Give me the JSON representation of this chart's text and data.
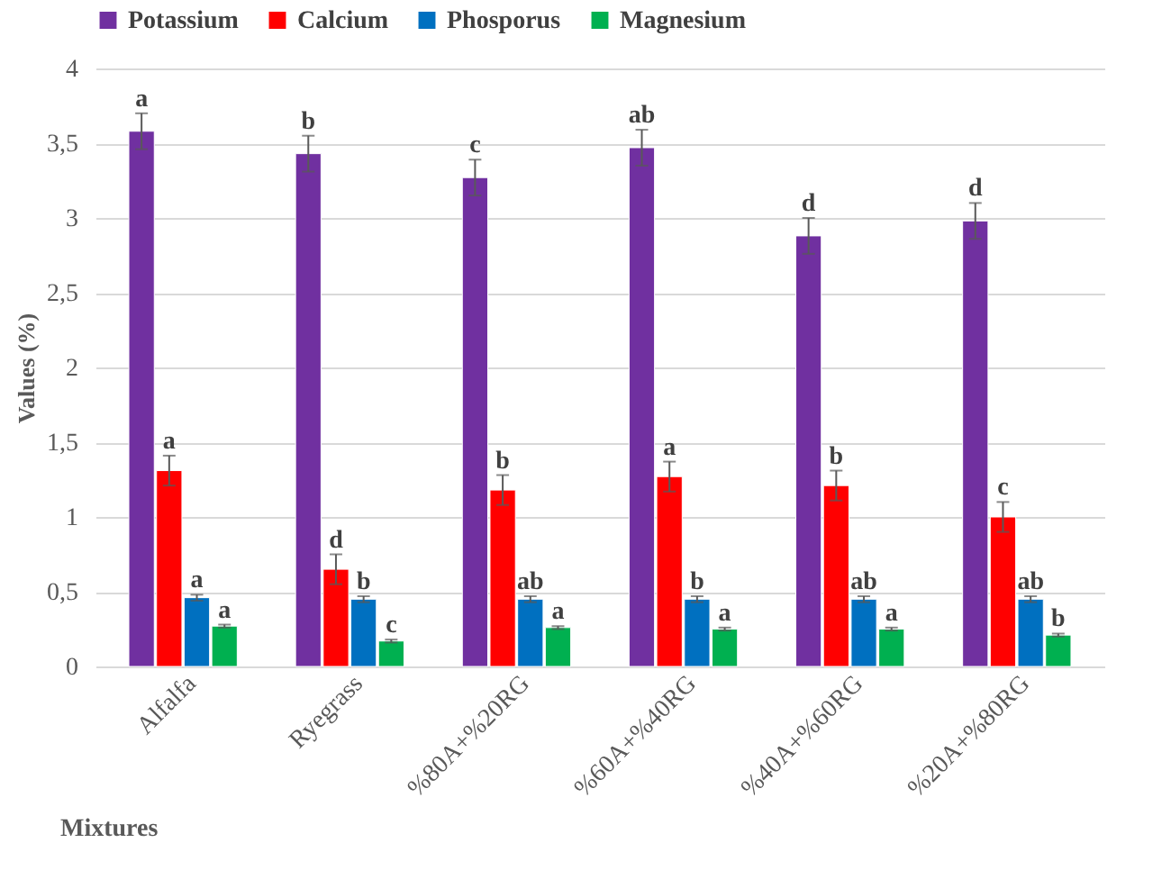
{
  "chart_data": {
    "type": "bar",
    "xlabel": "Mixtures",
    "ylabel": "Values (%)",
    "categories": [
      "Alfalfa",
      "Ryegrass",
      "%80A+%20RG",
      "%60A+%40RG",
      "%40A+%60RG",
      "%20A+%80RG"
    ],
    "series": [
      {
        "name": "Potassium",
        "color": "#7030a0",
        "values": [
          3.58,
          3.43,
          3.27,
          3.47,
          2.88,
          2.98
        ],
        "errors": [
          0.12,
          0.12,
          0.12,
          0.12,
          0.12,
          0.12
        ],
        "value_labels": [
          "a",
          "b",
          "c",
          "ab",
          "d",
          "d"
        ]
      },
      {
        "name": "Calcium",
        "color": "#ff0000",
        "values": [
          1.31,
          0.65,
          1.18,
          1.27,
          1.21,
          1.0
        ],
        "errors": [
          0.1,
          0.1,
          0.1,
          0.1,
          0.1,
          0.1
        ],
        "value_labels": [
          "a",
          "d",
          "b",
          "a",
          "b",
          "c"
        ]
      },
      {
        "name": "Phosporus",
        "color": "#0070c0",
        "values": [
          0.46,
          0.45,
          0.45,
          0.45,
          0.45,
          0.45
        ],
        "errors": [
          0.02,
          0.02,
          0.02,
          0.02,
          0.02,
          0.02
        ],
        "value_labels": [
          "a",
          "b",
          "ab",
          "b",
          "ab",
          "ab"
        ]
      },
      {
        "name": "Magnesium",
        "color": "#00b050",
        "values": [
          0.27,
          0.17,
          0.26,
          0.25,
          0.25,
          0.21
        ],
        "errors": [
          0.01,
          0.01,
          0.01,
          0.01,
          0.01,
          0.01
        ],
        "value_labels": [
          "a",
          "c",
          "a",
          "a",
          "a",
          "b"
        ]
      }
    ],
    "ylim": [
      0,
      4
    ],
    "yticks": [
      0,
      {
        "value": 0.5,
        "label": "0,5"
      },
      1,
      {
        "value": 1.5,
        "label": "1,5"
      },
      2,
      {
        "value": 2.5,
        "label": "2,5"
      },
      3,
      {
        "value": 3.5,
        "label": "3,5"
      },
      4
    ],
    "grid": "y",
    "legend": "top"
  }
}
